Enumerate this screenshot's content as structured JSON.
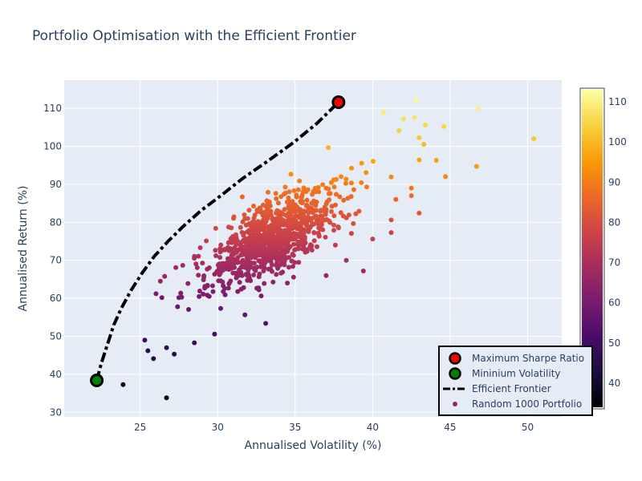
{
  "chart_data": {
    "type": "scatter",
    "title": "Portfolio Optimisation with the Efficient Frontier",
    "xlabel": "Annualised Volatility (%)",
    "ylabel": "Annualised Return (%)",
    "xlim": [
      20.1,
      52.2
    ],
    "ylim": [
      28.8,
      117.4
    ],
    "xticks": [
      25,
      30,
      35,
      40,
      45,
      50
    ],
    "yticks": [
      30,
      40,
      50,
      60,
      70,
      80,
      90,
      100,
      110
    ],
    "grid": true,
    "legend_position": "bottom-right",
    "colorbar": {
      "colorscale": "inferno",
      "min": 34,
      "max": 113,
      "ticks": [
        40,
        50,
        60,
        70,
        80,
        90,
        100,
        110
      ]
    },
    "series": [
      {
        "name": "Maximum Sharpe Ratio",
        "marker_color": "#ff0000",
        "points": [
          [
            37.8,
            111.6
          ]
        ]
      },
      {
        "name": "Mininium Volatility",
        "marker_color": "#008000",
        "points": [
          [
            22.2,
            38.4
          ]
        ]
      },
      {
        "name": "Efficient Frontier",
        "line_color": "#000000",
        "line_style": "dashdot",
        "x": [
          22.2,
          22.5,
          22.9,
          23.3,
          23.8,
          24.4,
          25.1,
          25.9,
          26.8,
          27.8,
          28.9,
          30.2,
          31.6,
          33.2,
          34.9,
          36.4,
          37.8
        ],
        "y": [
          38.4,
          43,
          48,
          53,
          57.5,
          62,
          66.5,
          71,
          75,
          79,
          83,
          87,
          91.5,
          96,
          101,
          106,
          111.6
        ]
      },
      {
        "name": "Random 1000 Portfolio",
        "marker": "circle",
        "count": 1000,
        "described_points": [
          [
            23.9,
            37.3
          ],
          [
            26.7,
            33.8
          ],
          [
            25.3,
            49
          ],
          [
            25.5,
            46.2
          ],
          [
            26.7,
            47
          ],
          [
            27.2,
            45.3
          ],
          [
            28.5,
            48.3
          ],
          [
            29.8,
            50.6
          ],
          [
            33.1,
            53.4
          ],
          [
            26.4,
            60.2
          ],
          [
            26.3,
            64.5
          ],
          [
            27.3,
            68.1
          ],
          [
            34.5,
            64
          ],
          [
            37,
            66
          ],
          [
            38.3,
            70
          ],
          [
            39.4,
            67.2
          ],
          [
            40,
            75.6
          ],
          [
            41.2,
            77.3
          ],
          [
            41.2,
            80.6
          ],
          [
            43,
            82.4
          ],
          [
            41.5,
            86
          ],
          [
            42.5,
            87
          ],
          [
            42.5,
            89
          ],
          [
            44.7,
            92
          ],
          [
            43,
            96.4
          ],
          [
            44.1,
            96.3
          ],
          [
            46.7,
            94.7
          ],
          [
            50.4,
            102
          ],
          [
            40.7,
            108.9
          ],
          [
            41.7,
            104.1
          ],
          [
            42,
            107.2
          ],
          [
            42.8,
            112.2
          ],
          [
            43.4,
            105.6
          ],
          [
            44.6,
            105.2
          ],
          [
            46.8,
            110
          ],
          [
            42.7,
            107.6
          ],
          [
            43.3,
            100.5
          ],
          [
            43,
            102.3
          ]
        ]
      }
    ]
  }
}
